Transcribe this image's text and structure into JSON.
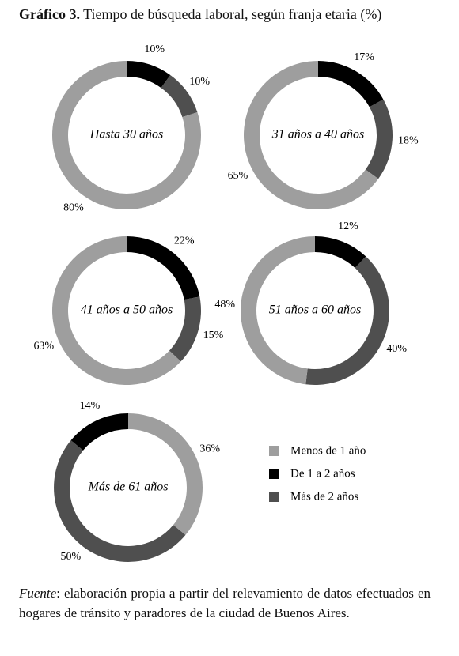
{
  "title_prefix": "Gráfico 3.",
  "title": "Tiempo de búsqueda laboral, según franja etaria (%)",
  "legend": {
    "categories": [
      "Menos de 1 año",
      "De 1 a 2 años",
      "Más de 2 años"
    ],
    "colors": [
      "#9e9e9e",
      "#000000",
      "#4f4f4f"
    ]
  },
  "chart_data": [
    {
      "type": "donut",
      "title": "Hasta 30 años",
      "values": [
        80,
        10,
        10
      ],
      "value_labels": [
        "80%",
        "10%",
        "10%"
      ],
      "direction": "clockwise"
    },
    {
      "type": "donut",
      "title": "31 años a 40 años",
      "values": [
        65,
        17,
        18
      ],
      "value_labels": [
        "65%",
        "17%",
        "18%"
      ],
      "direction": "clockwise"
    },
    {
      "type": "donut",
      "title": "41 años a 50 años",
      "values": [
        63,
        22,
        15
      ],
      "value_labels": [
        "63%",
        "22%",
        "15%"
      ],
      "direction": "clockwise"
    },
    {
      "type": "donut",
      "title": "51 años a 60 años",
      "values": [
        48,
        12,
        40
      ],
      "value_labels": [
        "48%",
        "12%",
        "40%"
      ],
      "direction": "clockwise"
    },
    {
      "type": "donut",
      "title": "Más de 61 años",
      "values": [
        36,
        14,
        50
      ],
      "value_labels": [
        "36%",
        "14%",
        "50%"
      ],
      "direction": "counterclockwise"
    }
  ],
  "source_label": "Fuente",
  "source_text": ": elaboración propia a partir del relevamiento de datos efectuados en hogares de tránsito y paradores de la ciudad de Buenos Aires."
}
